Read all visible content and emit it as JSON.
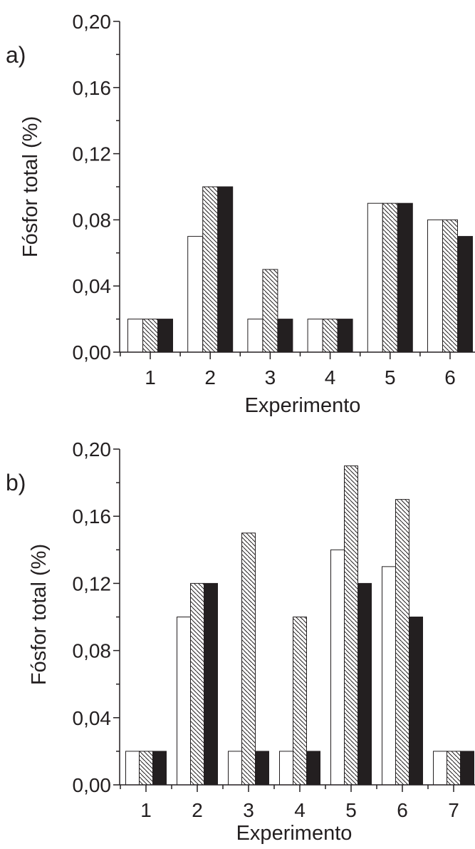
{
  "chart_data": [
    {
      "panel_label": "a)",
      "type": "bar",
      "ylabel": "Fósfor total (%)",
      "xlabel": "Experimento",
      "ylim": [
        0,
        0.2
      ],
      "yticks": [
        "0,00",
        "0,04",
        "0,08",
        "0,12",
        "0,16",
        "0,20"
      ],
      "categories": [
        "1",
        "2",
        "3",
        "4",
        "5",
        "6"
      ],
      "grid": false,
      "series": [
        {
          "fill": "white",
          "values": [
            0.02,
            0.07,
            0.02,
            0.02,
            0.09,
            0.08
          ]
        },
        {
          "fill": "hatched",
          "values": [
            0.02,
            0.1,
            0.05,
            0.02,
            0.09,
            0.08
          ]
        },
        {
          "fill": "black",
          "values": [
            0.02,
            0.1,
            0.02,
            0.02,
            0.09,
            0.07
          ]
        }
      ]
    },
    {
      "panel_label": "b)",
      "type": "bar",
      "ylabel": "Fósfor total (%)",
      "xlabel": "Experimento",
      "ylim": [
        0,
        0.2
      ],
      "yticks": [
        "0,00",
        "0,04",
        "0,08",
        "0,12",
        "0,16",
        "0,20"
      ],
      "categories": [
        "1",
        "2",
        "3",
        "4",
        "5",
        "6",
        "7"
      ],
      "grid": false,
      "series": [
        {
          "fill": "white",
          "values": [
            0.02,
            0.1,
            0.02,
            0.02,
            0.14,
            0.13,
            0.02
          ]
        },
        {
          "fill": "hatched",
          "values": [
            0.02,
            0.12,
            0.15,
            0.1,
            0.19,
            0.17,
            0.02
          ]
        },
        {
          "fill": "black",
          "values": [
            0.02,
            0.12,
            0.02,
            0.02,
            0.12,
            0.1,
            0.02
          ]
        }
      ]
    }
  ],
  "colors": {
    "ink": "#231f20",
    "white_bar": "#ffffff",
    "black_bar": "#231f20"
  }
}
